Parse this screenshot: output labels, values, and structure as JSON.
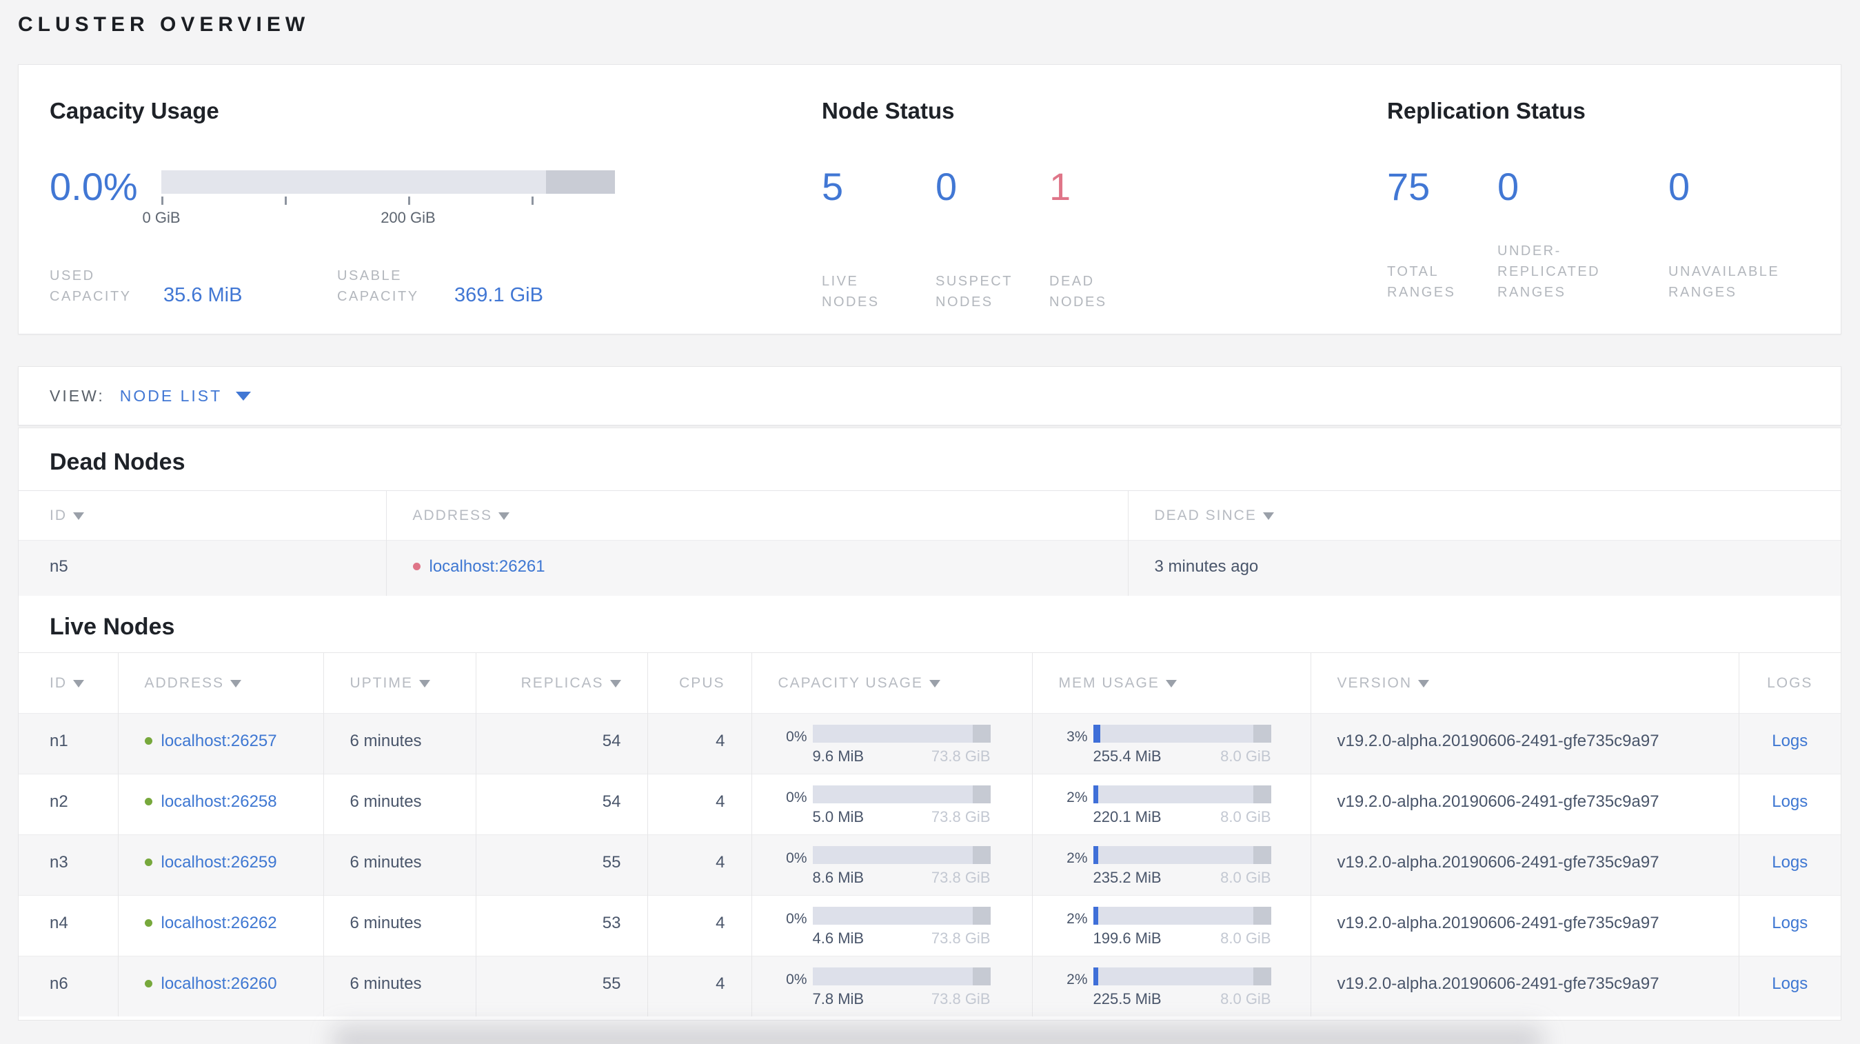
{
  "page_title": "CLUSTER OVERVIEW",
  "colors": {
    "accent_blue": "#4177d4",
    "dead_red": "#df7588",
    "live_green": "#77a83c"
  },
  "summary": {
    "capacity": {
      "title": "Capacity Usage",
      "percent": "0.0%",
      "used_fill_pct": 0,
      "axis_ticks": [
        {
          "pos": 0,
          "label": "0 GiB"
        },
        {
          "pos": 27.2,
          "label": ""
        },
        {
          "pos": 54.4,
          "label": "200 GiB"
        },
        {
          "pos": 81.6,
          "label": ""
        }
      ],
      "stats": [
        {
          "label": "USED CAPACITY",
          "value": "35.6 MiB"
        },
        {
          "label": "USABLE CAPACITY",
          "value": "369.1 GiB"
        }
      ]
    },
    "node_status": {
      "title": "Node Status",
      "stats": [
        {
          "value": "5",
          "label": "LIVE NODES"
        },
        {
          "value": "0",
          "label": "SUSPECT NODES"
        },
        {
          "value": "1",
          "label": "DEAD NODES"
        }
      ]
    },
    "replication": {
      "title": "Replication Status",
      "stats": [
        {
          "value": "75",
          "label": "TOTAL RANGES"
        },
        {
          "value": "0",
          "label": "UNDER-REPLICATED RANGES"
        },
        {
          "value": "0",
          "label": "UNAVAILABLE RANGES"
        }
      ]
    }
  },
  "view_bar": {
    "label": "VIEW:",
    "selected": "NODE LIST"
  },
  "dead_nodes": {
    "title": "Dead Nodes",
    "columns": {
      "id": "ID",
      "address": "ADDRESS",
      "dead_since": "DEAD SINCE"
    },
    "rows": [
      {
        "id": "n5",
        "address": "localhost:26261",
        "dead_since": "3 minutes ago"
      }
    ]
  },
  "live_nodes": {
    "title": "Live Nodes",
    "columns": {
      "id": "ID",
      "address": "ADDRESS",
      "uptime": "UPTIME",
      "replicas": "REPLICAS",
      "cpus": "CPUS",
      "capacity": "CAPACITY USAGE",
      "mem": "MEM USAGE",
      "version": "VERSION",
      "logs": "LOGS"
    },
    "rows": [
      {
        "id": "n1",
        "address": "localhost:26257",
        "uptime": "6 minutes",
        "replicas": "54",
        "cpus": "4",
        "cap_pct": "0%",
        "cap_fill": 0,
        "cap_used": "9.6 MiB",
        "cap_total": "73.8 GiB",
        "mem_pct": "3%",
        "mem_fill": 4,
        "mem_used": "255.4 MiB",
        "mem_total": "8.0 GiB",
        "version": "v19.2.0-alpha.20190606-2491-gfe735c9a97",
        "logs": "Logs"
      },
      {
        "id": "n2",
        "address": "localhost:26258",
        "uptime": "6 minutes",
        "replicas": "54",
        "cpus": "4",
        "cap_pct": "0%",
        "cap_fill": 0,
        "cap_used": "5.0 MiB",
        "cap_total": "73.8 GiB",
        "mem_pct": "2%",
        "mem_fill": 3,
        "mem_used": "220.1 MiB",
        "mem_total": "8.0 GiB",
        "version": "v19.2.0-alpha.20190606-2491-gfe735c9a97",
        "logs": "Logs"
      },
      {
        "id": "n3",
        "address": "localhost:26259",
        "uptime": "6 minutes",
        "replicas": "55",
        "cpus": "4",
        "cap_pct": "0%",
        "cap_fill": 0,
        "cap_used": "8.6 MiB",
        "cap_total": "73.8 GiB",
        "mem_pct": "2%",
        "mem_fill": 3,
        "mem_used": "235.2 MiB",
        "mem_total": "8.0 GiB",
        "version": "v19.2.0-alpha.20190606-2491-gfe735c9a97",
        "logs": "Logs"
      },
      {
        "id": "n4",
        "address": "localhost:26262",
        "uptime": "6 minutes",
        "replicas": "53",
        "cpus": "4",
        "cap_pct": "0%",
        "cap_fill": 0,
        "cap_used": "4.6 MiB",
        "cap_total": "73.8 GiB",
        "mem_pct": "2%",
        "mem_fill": 3,
        "mem_used": "199.6 MiB",
        "mem_total": "8.0 GiB",
        "version": "v19.2.0-alpha.20190606-2491-gfe735c9a97",
        "logs": "Logs"
      },
      {
        "id": "n6",
        "address": "localhost:26260",
        "uptime": "6 minutes",
        "replicas": "55",
        "cpus": "4",
        "cap_pct": "0%",
        "cap_fill": 0,
        "cap_used": "7.8 MiB",
        "cap_total": "73.8 GiB",
        "mem_pct": "2%",
        "mem_fill": 3,
        "mem_used": "225.5 MiB",
        "mem_total": "8.0 GiB",
        "version": "v19.2.0-alpha.20190606-2491-gfe735c9a97",
        "logs": "Logs"
      }
    ]
  }
}
